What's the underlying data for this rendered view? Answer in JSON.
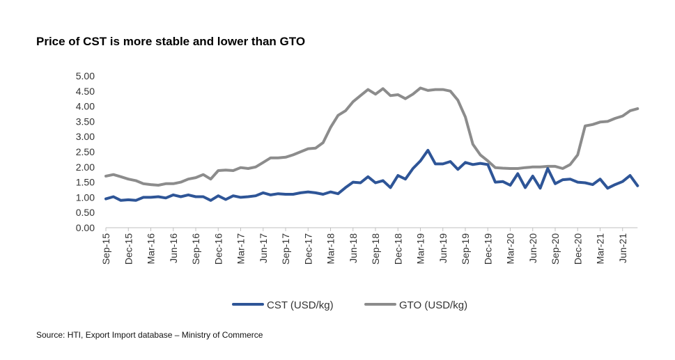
{
  "chart_data": {
    "type": "line",
    "title": "Price of CST is more stable and lower than GTO",
    "xlabel": "",
    "ylabel": "",
    "ylim": [
      0,
      5
    ],
    "yticks": [
      "0.00",
      "0.50",
      "1.00",
      "1.50",
      "2.00",
      "2.50",
      "3.00",
      "3.50",
      "4.00",
      "4.50",
      "5.00"
    ],
    "xtick_labels": [
      "Sep-15",
      "Dec-15",
      "Mar-16",
      "Jun-16",
      "Sep-16",
      "Dec-16",
      "Mar-17",
      "Jun-17",
      "Sep-17",
      "Dec-17",
      "Mar-18",
      "Jun-18",
      "Sep-18",
      "Dec-18",
      "Mar-19",
      "Jun-19",
      "Sep-19",
      "Dec-19",
      "Mar-20",
      "Jun-20",
      "Sep-20",
      "Dec-20",
      "Mar-21",
      "Jun-21"
    ],
    "categories": [
      "Sep-15",
      "Oct-15",
      "Nov-15",
      "Dec-15",
      "Jan-16",
      "Feb-16",
      "Mar-16",
      "Apr-16",
      "May-16",
      "Jun-16",
      "Jul-16",
      "Aug-16",
      "Sep-16",
      "Oct-16",
      "Nov-16",
      "Dec-16",
      "Jan-17",
      "Feb-17",
      "Mar-17",
      "Apr-17",
      "May-17",
      "Jun-17",
      "Jul-17",
      "Aug-17",
      "Sep-17",
      "Oct-17",
      "Nov-17",
      "Dec-17",
      "Jan-18",
      "Feb-18",
      "Mar-18",
      "Apr-18",
      "May-18",
      "Jun-18",
      "Jul-18",
      "Aug-18",
      "Sep-18",
      "Oct-18",
      "Nov-18",
      "Dec-18",
      "Jan-19",
      "Feb-19",
      "Mar-19",
      "Apr-19",
      "May-19",
      "Jun-19",
      "Jul-19",
      "Aug-19",
      "Sep-19",
      "Oct-19",
      "Nov-19",
      "Dec-19",
      "Jan-20",
      "Feb-20",
      "Mar-20",
      "Apr-20",
      "May-20",
      "Jun-20",
      "Jul-20",
      "Aug-20",
      "Sep-20",
      "Oct-20",
      "Nov-20",
      "Dec-20",
      "Jan-21",
      "Feb-21",
      "Mar-21",
      "Apr-21",
      "May-21",
      "Jun-21",
      "Jul-21",
      "Aug-21"
    ],
    "series": [
      {
        "name": "CST (USD/kg)",
        "color": "#2e5597",
        "values": [
          0.95,
          1.02,
          0.9,
          0.92,
          0.9,
          1.0,
          1.0,
          1.02,
          0.98,
          1.08,
          1.02,
          1.08,
          1.02,
          1.02,
          0.9,
          1.05,
          0.93,
          1.05,
          1.0,
          1.02,
          1.05,
          1.15,
          1.08,
          1.12,
          1.1,
          1.1,
          1.15,
          1.18,
          1.15,
          1.1,
          1.18,
          1.12,
          1.32,
          1.5,
          1.48,
          1.68,
          1.48,
          1.55,
          1.32,
          1.72,
          1.6,
          1.95,
          2.2,
          2.55,
          2.1,
          2.1,
          2.18,
          1.92,
          2.15,
          2.08,
          2.12,
          2.08,
          1.5,
          1.52,
          1.4,
          1.78,
          1.32,
          1.7,
          1.3,
          1.95,
          1.45,
          1.58,
          1.6,
          1.5,
          1.48,
          1.42,
          1.6,
          1.3,
          1.42,
          1.52,
          1.72,
          1.38
        ]
      },
      {
        "name": "GTO (USD/kg)",
        "color": "#8c8c8c",
        "values": [
          1.7,
          1.75,
          1.68,
          1.6,
          1.55,
          1.45,
          1.42,
          1.4,
          1.45,
          1.45,
          1.5,
          1.6,
          1.65,
          1.75,
          1.6,
          1.88,
          1.9,
          1.88,
          1.98,
          1.95,
          2.0,
          2.15,
          2.3,
          2.3,
          2.32,
          2.4,
          2.5,
          2.6,
          2.62,
          2.8,
          3.3,
          3.7,
          3.85,
          4.15,
          4.35,
          4.55,
          4.4,
          4.58,
          4.35,
          4.38,
          4.25,
          4.4,
          4.6,
          4.52,
          4.55,
          4.55,
          4.5,
          4.2,
          3.65,
          2.75,
          2.4,
          2.2,
          1.98,
          1.96,
          1.95,
          1.95,
          1.98,
          2.0,
          2.0,
          2.02,
          2.02,
          1.95,
          2.08,
          2.4,
          3.35,
          3.4,
          3.48,
          3.5,
          3.6,
          3.68,
          3.85,
          3.92
        ]
      }
    ],
    "legend_position": "bottom",
    "grid": false
  },
  "source": "Source: HTI, Export Import database – Ministry of Commerce"
}
